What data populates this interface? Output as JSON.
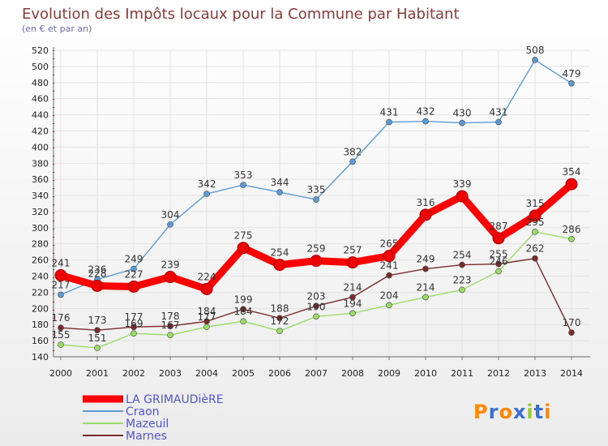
{
  "chart_data": {
    "type": "line",
    "title": "Evolution des Impôts locaux pour la Commune par Habitant",
    "subtitle": "(en € et par an)",
    "xlabel": "",
    "ylabel": "",
    "ylim": [
      140,
      520
    ],
    "ytick_step": 20,
    "grid": true,
    "legend_position": "bottom-left",
    "x": [
      "2000",
      "2001",
      "2002",
      "2003",
      "2004",
      "2005",
      "2006",
      "2007",
      "2008",
      "2009",
      "2010",
      "2011",
      "2012",
      "2013",
      "2014"
    ],
    "series": [
      {
        "name": "LA GRIMAUDièRE",
        "color": "#ff0000",
        "values": [
          241,
          228,
          227,
          239,
          224,
          275,
          254,
          259,
          257,
          265,
          316,
          339,
          287,
          315,
          354
        ]
      },
      {
        "name": "Craon",
        "color": "#5b9bd5",
        "values": [
          217,
          236,
          249,
          304,
          342,
          353,
          344,
          335,
          382,
          431,
          432,
          430,
          431,
          508,
          479
        ]
      },
      {
        "name": "Mazeuil",
        "color": "#99dd66",
        "values": [
          155,
          151,
          169,
          167,
          177,
          184,
          172,
          190,
          194,
          204,
          214,
          223,
          246,
          295,
          286
        ]
      },
      {
        "name": "Marnes",
        "color": "#7a2a2a",
        "values": [
          176,
          173,
          177,
          178,
          184,
          199,
          188,
          203,
          214,
          241,
          249,
          254,
          255,
          262,
          170
        ]
      }
    ]
  },
  "labels": {
    "LA GRIMAUDièRE": [
      "241",
      "228",
      "227",
      "239",
      "224",
      "275",
      "254",
      "259",
      "257",
      "265",
      "316",
      "339",
      "287",
      "315",
      "354"
    ],
    "Craon": [
      "217",
      "236",
      "249",
      "304",
      "342",
      "353",
      "344",
      "335",
      "382",
      "431",
      "432",
      "430",
      "431",
      "508",
      "479"
    ],
    "Mazeuil": [
      "155",
      "151",
      "169",
      "167",
      "177",
      "184",
      "172",
      "190",
      "194",
      "204",
      "214",
      "223",
      "246",
      "295",
      "286"
    ],
    "Marnes": [
      "176",
      "173",
      "177",
      "178",
      "184",
      "199",
      "188",
      "203",
      "214",
      "241",
      "249",
      "254",
      "255",
      "262",
      "170"
    ]
  },
  "brand": {
    "text": "Proxiti"
  },
  "colors": {
    "title": "#8a3a3a",
    "subtitle": "#6b6bb0",
    "legend_text": "#5555cc"
  }
}
